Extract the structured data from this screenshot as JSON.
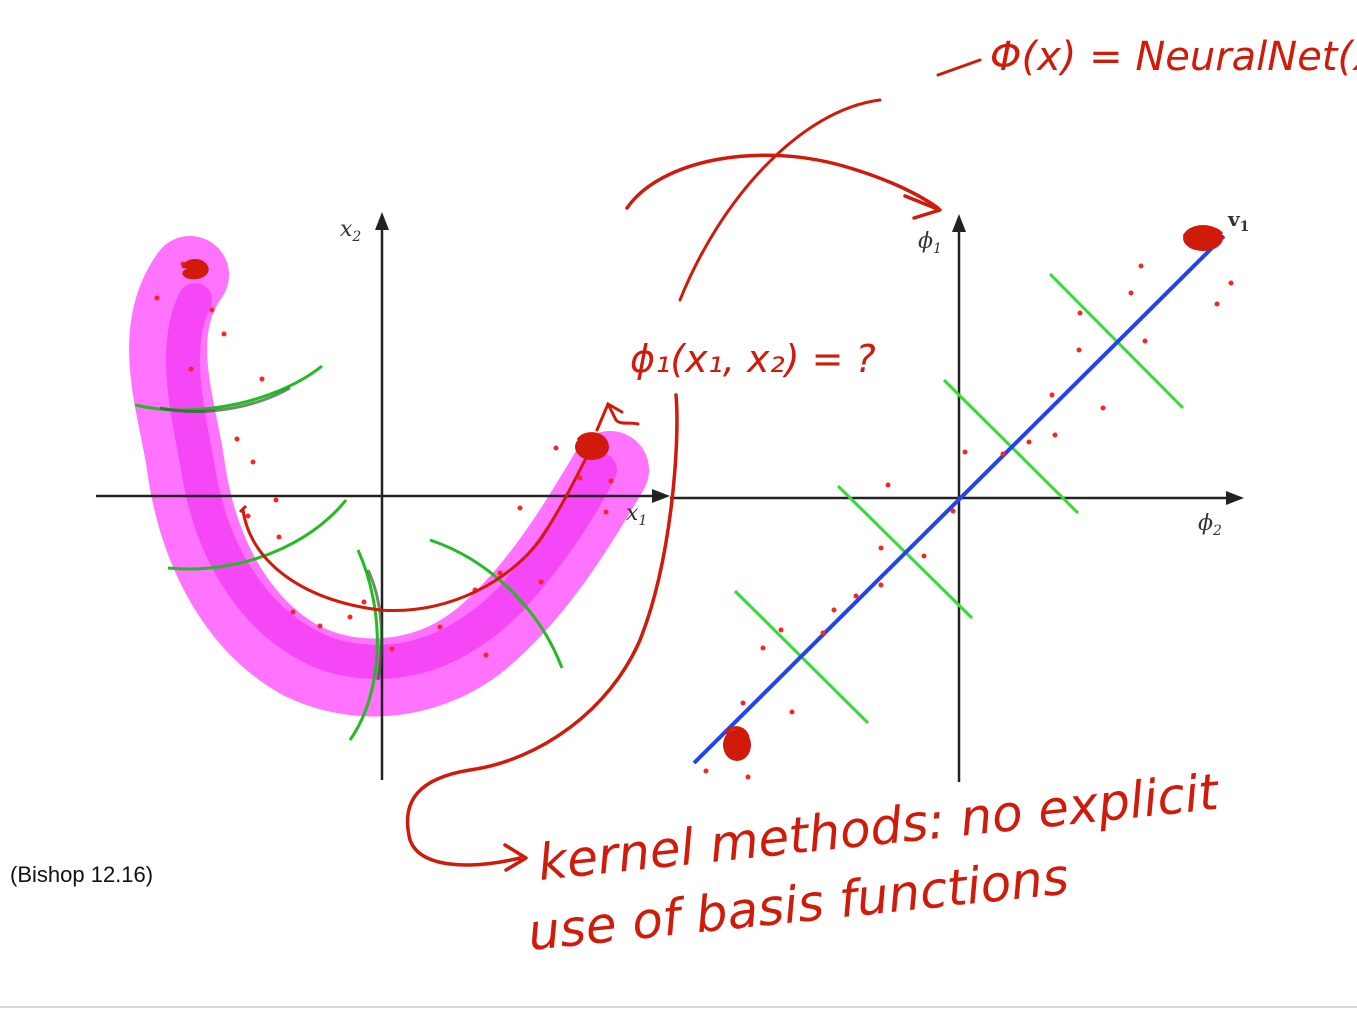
{
  "left_plot": {
    "x_axis_label": "x",
    "x_axis_sub": "1",
    "y_axis_label": "x",
    "y_axis_sub": "2"
  },
  "right_plot": {
    "x_axis_label": "ϕ",
    "x_axis_sub": "2",
    "y_axis_label": "ϕ",
    "y_axis_sub": "1",
    "eigenvector_label": "v",
    "eigenvector_sub": "1"
  },
  "annotations": {
    "feature_map": "Φ(x) = NeuralNet(x)",
    "basis_question": "ϕ₁(x₁, x₂) = ?",
    "kernel_line1": "kernel methods: no explicit",
    "kernel_line2": "use of basis functions"
  },
  "caption": "(Bishop 12.16)",
  "colors": {
    "ink_red": "#d01a0a",
    "highlight_magenta": "#ff33ff",
    "principal_axis_blue": "#2244ee",
    "contour_green": "#22cc22",
    "axis_black": "#222222",
    "data_points": "#ff2222"
  }
}
